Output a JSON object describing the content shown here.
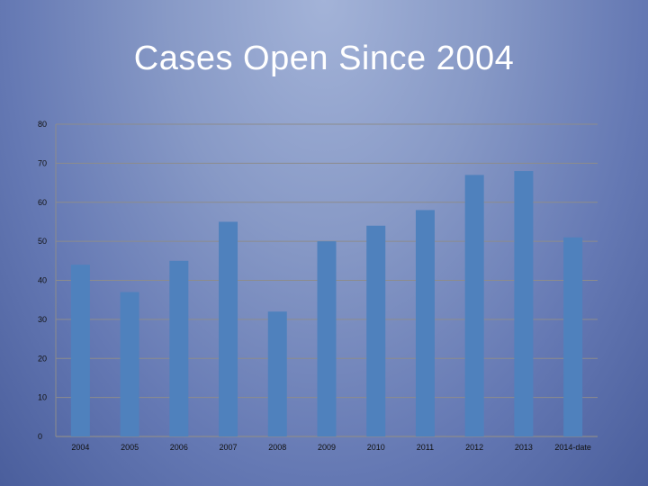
{
  "chart_data": {
    "type": "bar",
    "title": "Cases Open Since 2004",
    "categories": [
      "2004",
      "2005",
      "2006",
      "2007",
      "2008",
      "2009",
      "2010",
      "2011",
      "2012",
      "2013",
      "2014-date"
    ],
    "values": [
      44,
      37,
      45,
      55,
      32,
      50,
      54,
      58,
      67,
      68,
      51
    ],
    "yticks": [
      "0",
      "10",
      "20",
      "30",
      "40",
      "50",
      "60",
      "70",
      "80"
    ],
    "ylim": [
      0,
      80
    ],
    "grid": true,
    "legend": "none",
    "colors": {
      "bar": "#4f81bd",
      "grid": "#8c8c8c",
      "axis": "#8c8c8c"
    }
  }
}
